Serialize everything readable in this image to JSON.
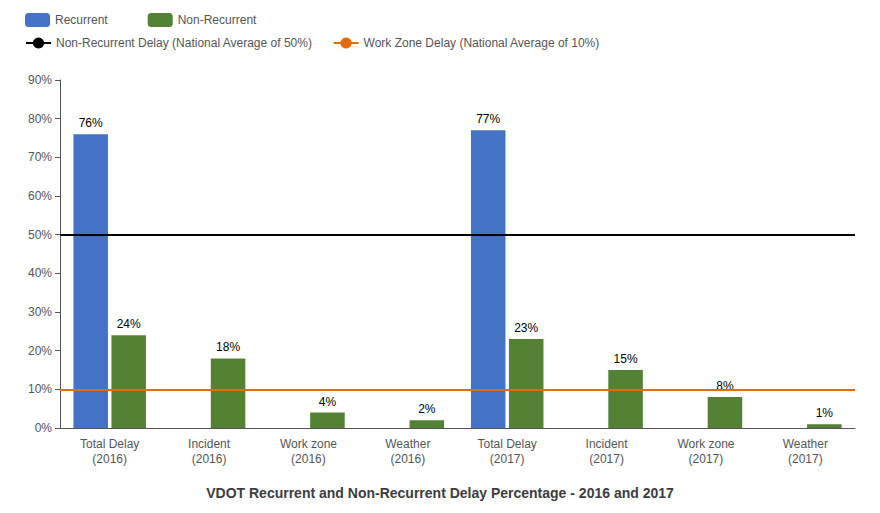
{
  "chart_data": {
    "type": "bar",
    "title": "VDOT Recurrent and Non-Recurrent Delay Percentage - 2016 and 2017",
    "categories": [
      "Total Delay\n(2016)",
      "Incident\n(2016)",
      "Work zone\n(2016)",
      "Weather\n(2016)",
      "Total Delay\n(2017)",
      "Incident\n(2017)",
      "Work zone\n(2017)",
      "Weather\n(2017)"
    ],
    "series": [
      {
        "name": "Recurrent",
        "color": "#4472C4",
        "values": [
          76,
          0,
          0,
          0,
          77,
          0,
          0,
          0
        ],
        "value_labels": [
          "76%",
          null,
          null,
          null,
          "77%",
          null,
          null,
          null
        ]
      },
      {
        "name": "Non-Recurrent",
        "color": "#548235",
        "values": [
          24,
          18,
          4,
          2,
          23,
          15,
          8,
          1
        ],
        "value_labels": [
          "24%",
          "18%",
          "4%",
          "2%",
          "23%",
          "15%",
          "8%",
          "1%"
        ]
      }
    ],
    "reference_lines": [
      {
        "name": "Non-Recurrent Delay (National Average of 50%)",
        "y": 50,
        "color": "#000000"
      },
      {
        "name": "Work Zone Delay (National Average of 10%)",
        "y": 10,
        "color": "#E36C09"
      }
    ],
    "ylim": [
      0,
      90
    ],
    "yticks": [
      {
        "value": 0,
        "label": "0%"
      },
      {
        "value": 10,
        "label": "10%"
      },
      {
        "value": 20,
        "label": "20%"
      },
      {
        "value": 30,
        "label": "30%"
      },
      {
        "value": 40,
        "label": "40%"
      },
      {
        "value": 50,
        "label": "50%"
      },
      {
        "value": 60,
        "label": "60%"
      },
      {
        "value": 70,
        "label": "70%"
      },
      {
        "value": 80,
        "label": "80%"
      },
      {
        "value": 90,
        "label": "90%"
      }
    ],
    "grid": false,
    "data_labels": true,
    "legend": "upper left"
  }
}
